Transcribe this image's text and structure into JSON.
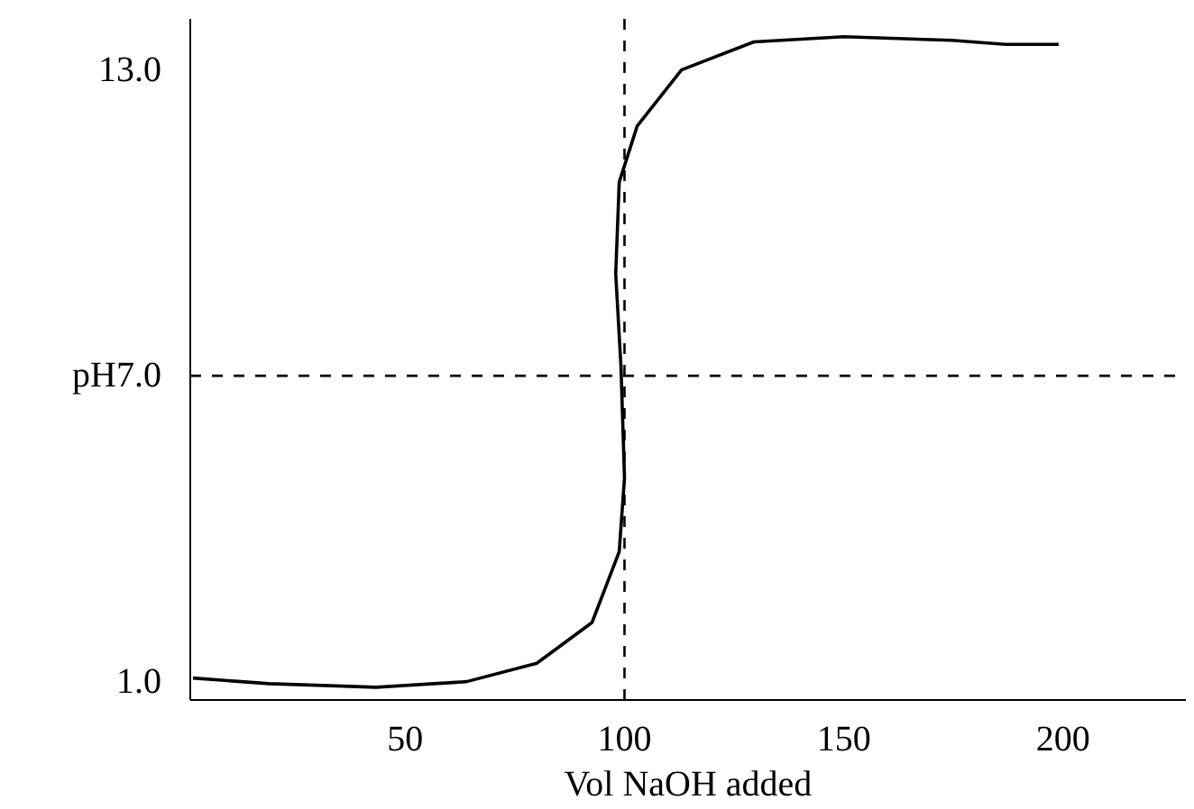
{
  "chart_data": {
    "type": "line",
    "xlabel": "Vol NaOH added",
    "x": [
      1.6,
      18.9,
      43.4,
      64,
      80,
      92.6,
      98.8,
      100,
      99.2,
      98,
      98.8,
      102.9,
      113,
      129.5,
      150,
      174.6,
      186.9,
      199
    ],
    "values": [
      1.07,
      0.96,
      0.89,
      1.0,
      1.36,
      2.16,
      3.55,
      5.0,
      7.18,
      9.0,
      10.8,
      11.9,
      13.0,
      13.55,
      13.65,
      13.58,
      13.5,
      13.5
    ],
    "color": "#000000",
    "xlim": [
      1,
      228
    ],
    "ylim": [
      0.64,
      14.0
    ],
    "xticks": [
      50,
      100,
      150,
      200
    ],
    "yticks": [
      {
        "value": 1,
        "label": "1.0"
      },
      {
        "value": 7,
        "label": "pH7.0"
      },
      {
        "value": 13,
        "label": "13.0"
      }
    ],
    "ref_lines": [
      {
        "axis": "y",
        "value": 7,
        "line_style": "dashed",
        "color": "#000000"
      },
      {
        "axis": "x",
        "value": 100,
        "line_style": "dashed",
        "color": "#000000"
      }
    ],
    "grid": false,
    "marker": "none",
    "line_style": "solid"
  }
}
